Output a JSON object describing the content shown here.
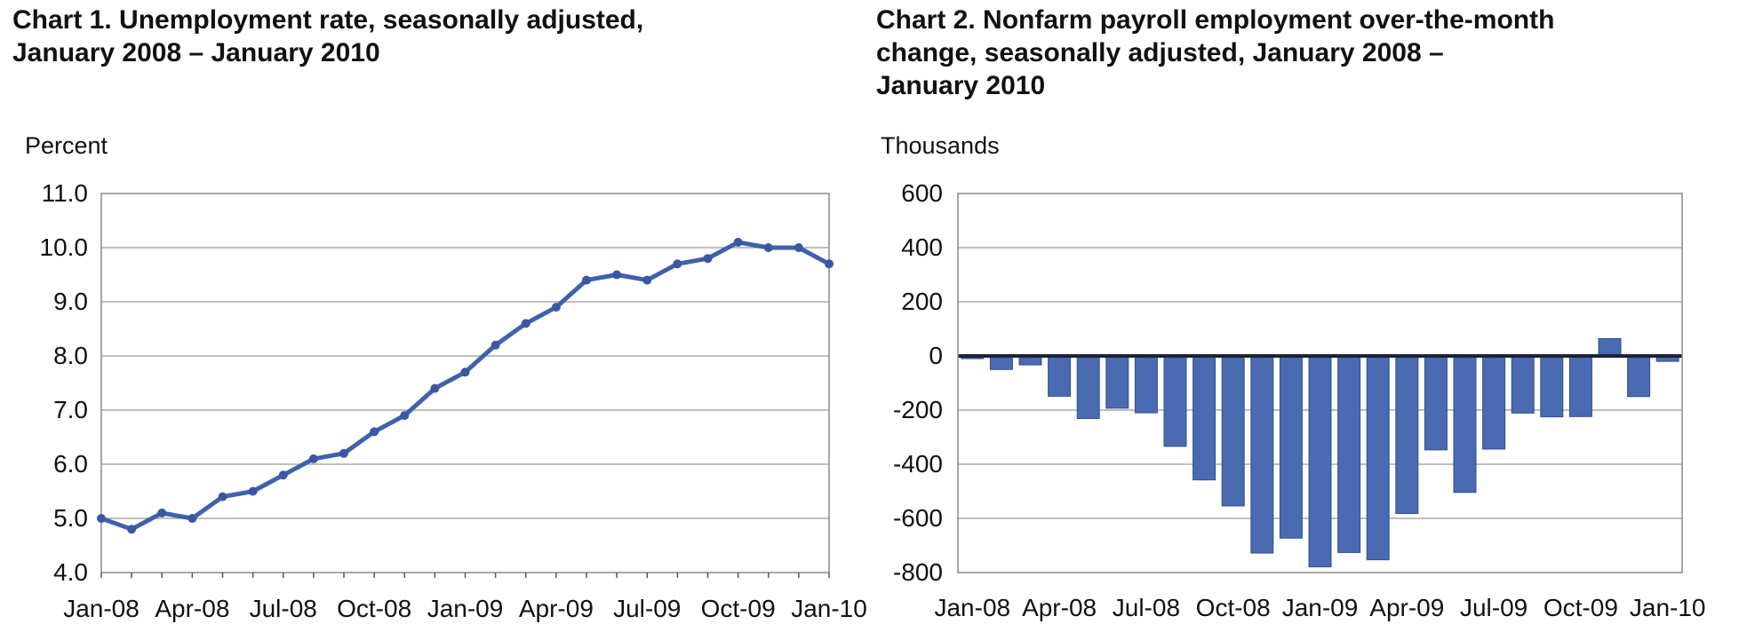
{
  "chart_data": [
    {
      "type": "line",
      "title": "Chart 1. Unemployment rate, seasonally adjusted,\nJanuary 2008 – January 2010",
      "unit_label": "Percent",
      "categories": [
        "Jan-08",
        "Feb-08",
        "Mar-08",
        "Apr-08",
        "May-08",
        "Jun-08",
        "Jul-08",
        "Aug-08",
        "Sep-08",
        "Oct-08",
        "Nov-08",
        "Dec-08",
        "Jan-09",
        "Feb-09",
        "Mar-09",
        "Apr-09",
        "May-09",
        "Jun-09",
        "Jul-09",
        "Aug-09",
        "Sep-09",
        "Oct-09",
        "Nov-09",
        "Dec-09",
        "Jan-10"
      ],
      "values": [
        5.0,
        4.8,
        5.1,
        5.0,
        5.4,
        5.5,
        5.8,
        6.1,
        6.2,
        6.6,
        6.9,
        7.4,
        7.7,
        8.2,
        8.6,
        8.9,
        9.4,
        9.5,
        9.4,
        9.7,
        9.8,
        10.1,
        10.0,
        10.0,
        9.7
      ],
      "x_tick_labels": [
        "Jan-08",
        "Apr-08",
        "Jul-08",
        "Oct-08",
        "Jan-09",
        "Apr-09",
        "Jul-09",
        "Oct-09",
        "Jan-10"
      ],
      "y_tick_labels": [
        "11.0",
        "10.0",
        "9.0",
        "8.0",
        "7.0",
        "6.0",
        "5.0",
        "4.0"
      ],
      "ylim": [
        4.0,
        11.0
      ],
      "grid": true,
      "legend_position": "none",
      "series_color": "#4061ab",
      "marker_color": "#3a57a2",
      "gridline_color": "#a8a8a8",
      "border_color": "#8a8a8a"
    },
    {
      "type": "bar",
      "title": "Chart 2. Nonfarm payroll employment over-the-month\nchange, seasonally adjusted, January 2008 –\nJanuary 2010",
      "unit_label": "Thousands",
      "categories": [
        "Jan-08",
        "Feb-08",
        "Mar-08",
        "Apr-08",
        "May-08",
        "Jun-08",
        "Jul-08",
        "Aug-08",
        "Sep-08",
        "Oct-08",
        "Nov-08",
        "Dec-08",
        "Jan-09",
        "Feb-09",
        "Mar-09",
        "Apr-09",
        "May-09",
        "Jun-09",
        "Jul-09",
        "Aug-09",
        "Sep-09",
        "Oct-09",
        "Nov-09",
        "Dec-09",
        "Jan-10"
      ],
      "values": [
        -10,
        -50,
        -33,
        -149,
        -231,
        -193,
        -210,
        -334,
        -458,
        -554,
        -728,
        -673,
        -779,
        -726,
        -753,
        -582,
        -347,
        -504,
        -344,
        -211,
        -225,
        -224,
        64,
        -150,
        -20
      ],
      "x_tick_labels": [
        "Jan-08",
        "Apr-08",
        "Jul-08",
        "Oct-08",
        "Jan-09",
        "Apr-09",
        "Jul-09",
        "Oct-09",
        "Jan-10"
      ],
      "y_tick_labels": [
        "600",
        "400",
        "200",
        "0",
        "-200",
        "-400",
        "-600",
        "-800"
      ],
      "ylim": [
        -800,
        600
      ],
      "grid": true,
      "legend_position": "none",
      "bar_color": "#4a6ab1",
      "bar_edge_color": "#33508e",
      "zero_line_color": "#1c2336",
      "gridline_color": "#a8a8a8",
      "border_color": "#8a8a8a"
    }
  ]
}
